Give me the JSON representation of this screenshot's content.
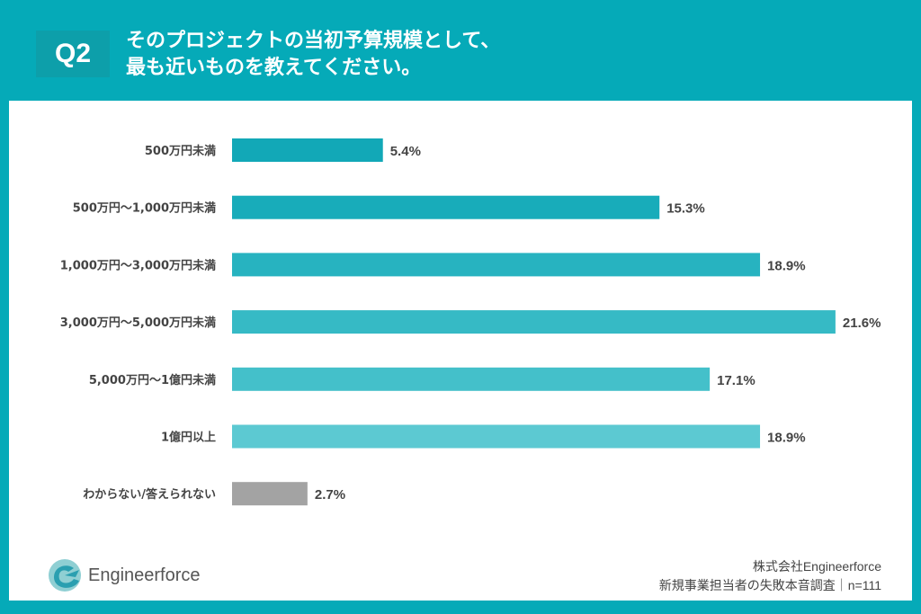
{
  "header": {
    "badge": "Q2",
    "title_line1": "そのプロジェクトの当初予算規模として、",
    "title_line2": "最も近いものを教えてください。"
  },
  "chart_data": {
    "type": "bar",
    "orientation": "horizontal",
    "categories": [
      "500万円未満",
      "500万円〜1,000万円未満",
      "1,000万円〜3,000万円未満",
      "3,000万円〜5,000万円未満",
      "5,000万円〜1億円未満",
      "1億円以上",
      "わからない/答えられない"
    ],
    "values": [
      5.4,
      15.3,
      18.9,
      21.6,
      17.1,
      18.9,
      2.7
    ],
    "data_labels": [
      "5.4%",
      "15.3%",
      "18.9%",
      "21.6%",
      "17.1%",
      "18.9%",
      "2.7%"
    ],
    "colors": [
      "#12a8b7",
      "#18acba",
      "#27b3c0",
      "#36bac5",
      "#44c0ca",
      "#5cc9d2",
      "#a3a3a3"
    ],
    "unit": "%",
    "grid": false
  },
  "footer": {
    "logo_text": "Engineerforce",
    "company": "株式会社Engineerforce",
    "survey": "新規事業担当者の失敗本音調査｜n=111"
  }
}
